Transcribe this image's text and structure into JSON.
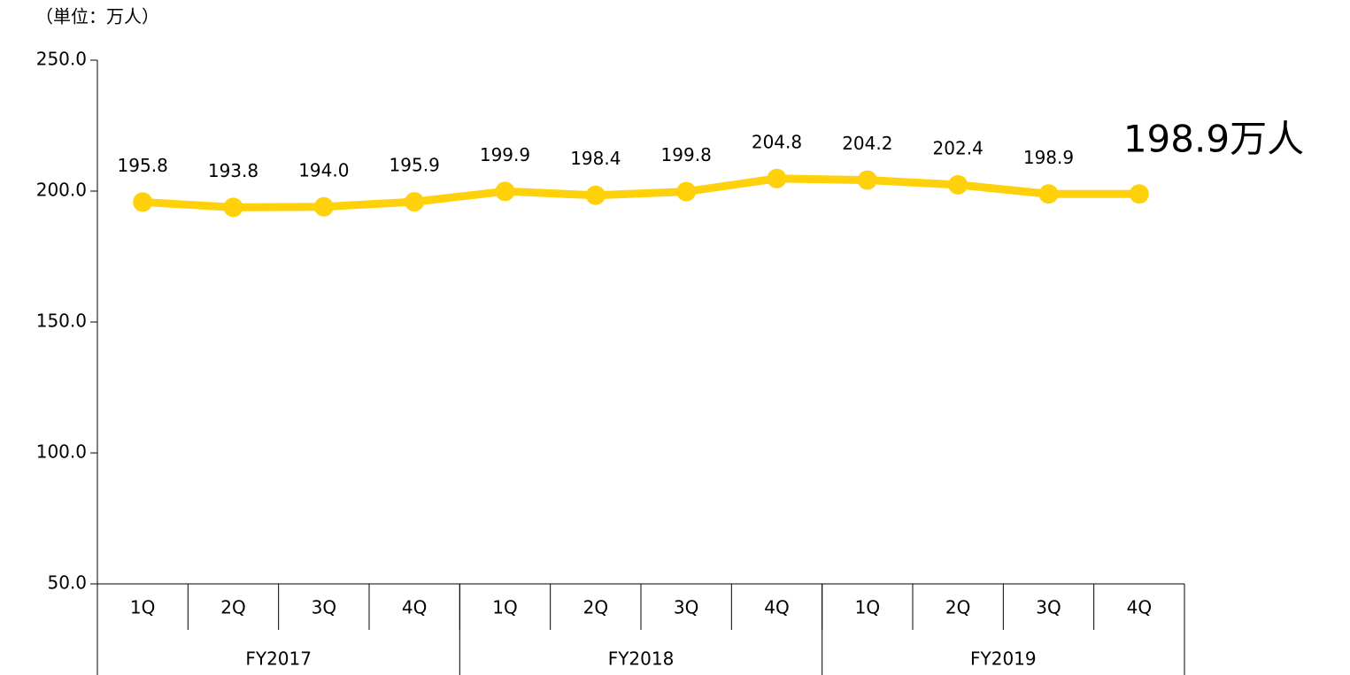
{
  "chart_data": {
    "type": "line",
    "unit_label": "（単位：万人）",
    "categories": [
      "1Q",
      "2Q",
      "3Q",
      "4Q",
      "1Q",
      "2Q",
      "3Q",
      "4Q",
      "1Q",
      "2Q",
      "3Q",
      "4Q"
    ],
    "groups": [
      "FY2017",
      "FY2018",
      "FY2019"
    ],
    "series": [
      {
        "color": "#ffd10a",
        "values": [
          195.8,
          193.8,
          194.0,
          195.9,
          199.9,
          198.4,
          199.8,
          204.8,
          204.2,
          202.4,
          198.9,
          198.9
        ],
        "value_labels": [
          "195.8",
          "193.8",
          "194.0",
          "195.9",
          "199.9",
          "198.4",
          "199.8",
          "204.8",
          "204.2",
          "202.4",
          "198.9",
          "198.9万人"
        ]
      }
    ],
    "ylim": [
      50,
      250
    ],
    "yticks": [
      {
        "value": 50,
        "label": "50.0"
      },
      {
        "value": 100,
        "label": "100.0"
      },
      {
        "value": 150,
        "label": "150.0"
      },
      {
        "value": 200,
        "label": "200.0"
      },
      {
        "value": 250,
        "label": "250.0"
      }
    ],
    "grid": false
  }
}
